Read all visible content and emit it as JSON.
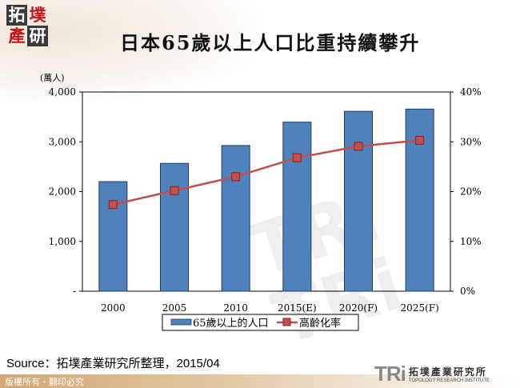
{
  "header": {
    "logo_chars": [
      "拓",
      "墣",
      "產",
      "研"
    ],
    "title": "日本65歲以上人口比重持續攀升"
  },
  "chart_data": {
    "type": "bar",
    "title": "日本65歲以上人口比重持續攀升",
    "categories": [
      "2000",
      "2005",
      "2010",
      "2015(E)",
      "2020(F)",
      "2025(F)"
    ],
    "series": [
      {
        "name": "65歲以上的人口",
        "type": "bar",
        "axis": "left",
        "color": "#4f81bd",
        "values": [
          2200,
          2567,
          2925,
          3395,
          3612,
          3657
        ]
      },
      {
        "name": "高齡化率",
        "type": "line",
        "axis": "right",
        "color": "#c0504d",
        "values": [
          17.4,
          20.2,
          23.0,
          26.8,
          29.1,
          30.3
        ]
      }
    ],
    "ylabel": "(萬人)",
    "ylim": [
      0,
      4000
    ],
    "yticks": [
      "-",
      "1,000",
      "2,000",
      "3,000",
      "4,000"
    ],
    "y2lim": [
      0,
      40
    ],
    "y2ticks": [
      "0%",
      "10%",
      "20%",
      "30%",
      "40%"
    ],
    "grid": false,
    "legend_position": "bottom"
  },
  "legend": {
    "bar_label": "65歲以上的人口",
    "line_label": "高齡化率"
  },
  "footer": {
    "source": "Source：拓墣產業研究所整理，2015/04",
    "copyright": "版權所有・翻印必究",
    "org_mark": "TRi",
    "org_cn": "拓墣產業研究所",
    "org_en": "TOPOLOGY RESEARCH INSTITUTE"
  }
}
